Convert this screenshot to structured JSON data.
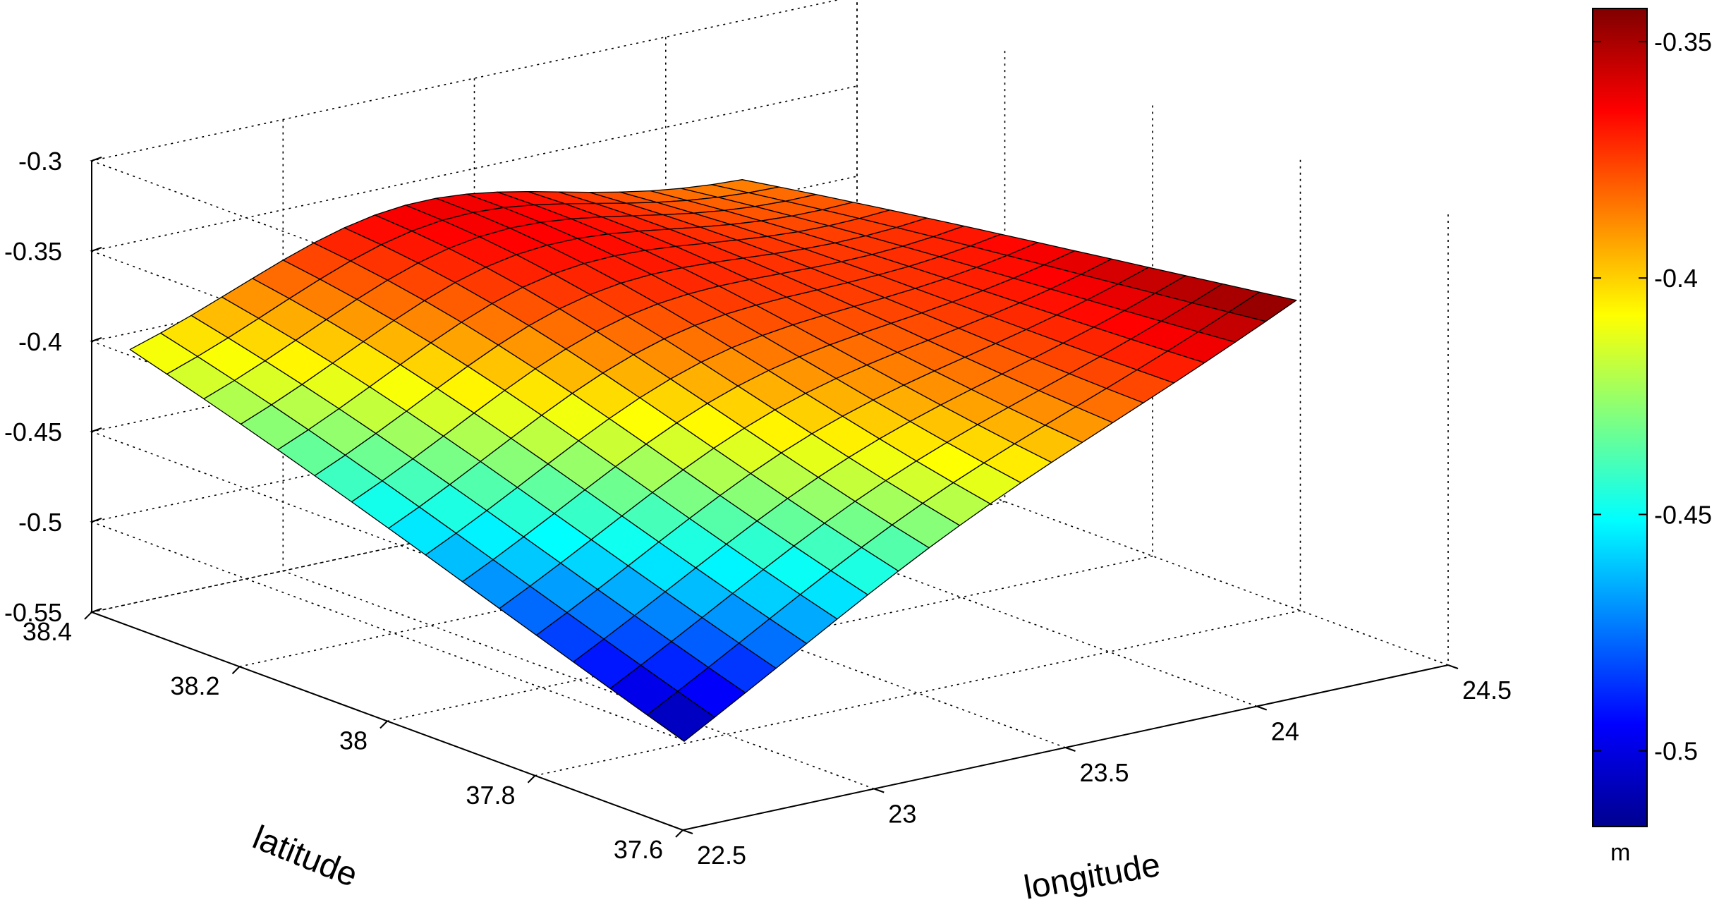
{
  "chart_data": {
    "type": "surface",
    "xlabel": "longitude",
    "ylabel": "latitude",
    "colorbar": {
      "unit": "m",
      "ticks": [
        "-0.35",
        "-0.4",
        "-0.45",
        "-0.5"
      ],
      "tick_values": [
        -0.35,
        -0.4,
        -0.45,
        -0.5
      ],
      "range": [
        -0.516,
        -0.343
      ],
      "colormap": "jet"
    },
    "x_ticks": [
      "22.5",
      "23",
      "23.5",
      "24",
      "24.5"
    ],
    "x_tick_values": [
      22.5,
      23,
      23.5,
      24,
      24.5
    ],
    "y_ticks": [
      "37.6",
      "37.8",
      "38",
      "38.2",
      "38.4"
    ],
    "y_tick_values": [
      37.6,
      37.8,
      38.0,
      38.2,
      38.4
    ],
    "z_ticks": [
      "-0.3",
      "-0.35",
      "-0.4",
      "-0.45",
      "-0.5",
      "-0.55"
    ],
    "z_tick_values": [
      -0.3,
      -0.35,
      -0.4,
      -0.45,
      -0.5,
      -0.55
    ],
    "xlim": [
      22.5,
      24.5
    ],
    "ylim": [
      37.6,
      38.4
    ],
    "zlim": [
      -0.55,
      -0.3
    ],
    "grid": true,
    "surface_extent": {
      "longitude": [
        22.6,
        24.2
      ],
      "latitude": [
        37.65,
        38.4
      ]
    },
    "surface_corners": [
      {
        "longitude": 22.6,
        "latitude": 37.65,
        "value": -0.516
      },
      {
        "longitude": 22.6,
        "latitude": 38.4,
        "value": -0.421
      },
      {
        "longitude": 24.2,
        "latitude": 38.4,
        "value": -0.393
      },
      {
        "longitude": 24.2,
        "latitude": 37.65,
        "value": -0.343
      }
    ],
    "surface_peak": {
      "longitude": 23.3,
      "latitude": 38.3,
      "value": -0.365
    },
    "surface_grid": {
      "rows": 16,
      "cols": 21
    }
  }
}
